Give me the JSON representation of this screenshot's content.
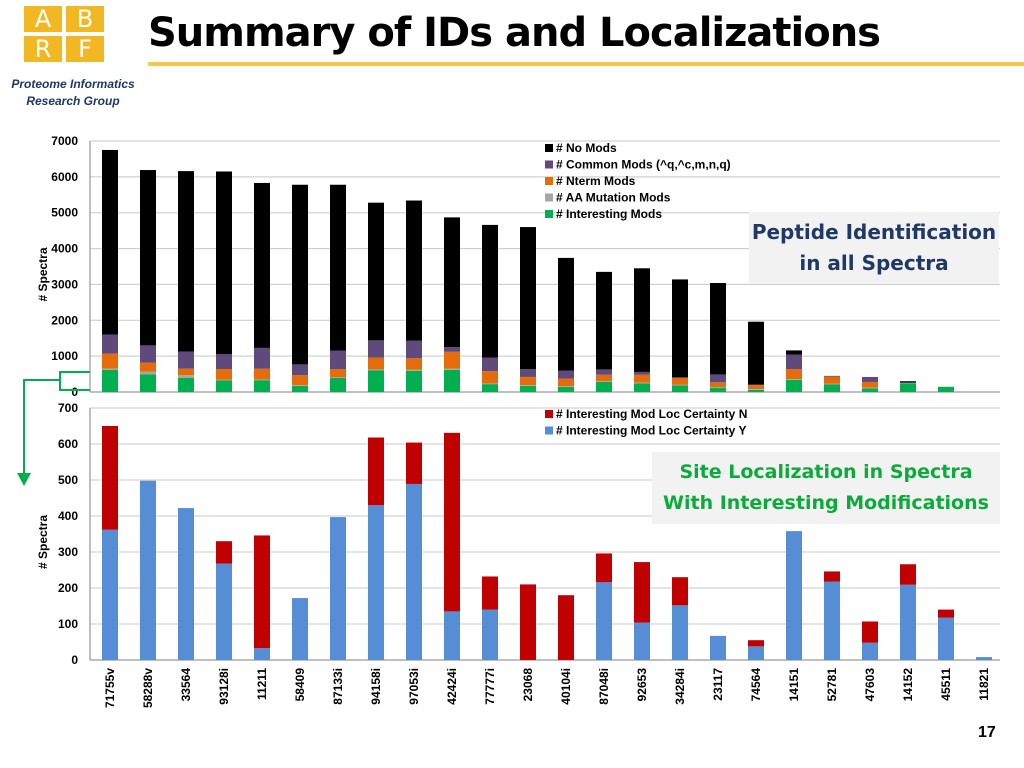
{
  "header": {
    "logo_letters": [
      "A",
      "B",
      "R",
      "F"
    ],
    "org_line1": "Proteome Informatics",
    "org_line2": "Research Group",
    "title": "Summary of IDs and Localizations"
  },
  "callouts": {
    "top": [
      "Peptide Identification",
      "in all Spectra"
    ],
    "bottom": [
      "Site Localization in Spectra",
      "With Interesting Modifications"
    ]
  },
  "page_number": "17",
  "colors": {
    "black": "#000000",
    "purple": "#604a7b",
    "orange": "#e46c0a",
    "gray": "#a6a6a6",
    "green": "#00b050",
    "red": "#c00000",
    "blue": "#558ed5",
    "accent": "#f2c94c"
  },
  "chart_data": [
    {
      "type": "bar",
      "stacked": true,
      "ylabel": "#  Spectra",
      "ylim": [
        0,
        7000
      ],
      "yticks": [
        "0",
        "1000",
        "2000",
        "3000",
        "4000",
        "5000",
        "6000",
        "7000"
      ],
      "categories": [
        "71755v",
        "58288v",
        "33564",
        "93128i",
        "11211",
        "58409",
        "87133i",
        "94158i",
        "97053i",
        "42424i",
        "77777i",
        "23068",
        "40104i",
        "87048i",
        "92653",
        "34284i",
        "23117",
        "74564",
        "14151",
        "52781",
        "47603",
        "14152",
        "45511",
        "11821"
      ],
      "series": [
        {
          "name": "# Interesting Mods",
          "color": "#00b050",
          "values": [
            620,
            490,
            390,
            320,
            330,
            170,
            390,
            600,
            590,
            620,
            220,
            170,
            140,
            280,
            240,
            180,
            120,
            60,
            340,
            210,
            100,
            240,
            140,
            0
          ]
        },
        {
          "name": "# AA Mutation Mods",
          "color": "#a6a6a6",
          "values": [
            30,
            80,
            80,
            20,
            20,
            20,
            20,
            30,
            30,
            30,
            20,
            20,
            20,
            20,
            20,
            20,
            20,
            20,
            20,
            20,
            20,
            20,
            10,
            0
          ]
        },
        {
          "name": "# Nterm Mods",
          "color": "#e46c0a",
          "values": [
            420,
            250,
            180,
            300,
            300,
            280,
            230,
            330,
            320,
            470,
            340,
            230,
            210,
            180,
            220,
            190,
            130,
            110,
            280,
            200,
            160,
            0,
            0,
            0
          ]
        },
        {
          "name": "# Common Mods (^q,^c,m,n,q)",
          "color": "#604a7b",
          "values": [
            530,
            480,
            480,
            420,
            580,
            300,
            510,
            480,
            490,
            130,
            380,
            220,
            230,
            150,
            80,
            20,
            220,
            20,
            400,
            20,
            140,
            0,
            0,
            0
          ]
        },
        {
          "name": "# No Mods",
          "color": "#000000",
          "values": [
            5150,
            4890,
            5030,
            5090,
            4600,
            5010,
            4630,
            3840,
            3910,
            3620,
            3700,
            3960,
            3140,
            2720,
            2890,
            2730,
            2550,
            1750,
            120,
            0,
            0,
            40,
            0,
            0
          ]
        }
      ],
      "legend": "top-right"
    },
    {
      "type": "bar",
      "stacked": true,
      "ylabel": "#  Spectra",
      "ylim": [
        0,
        700
      ],
      "yticks": [
        "0",
        "100",
        "200",
        "300",
        "400",
        "500",
        "600",
        "700"
      ],
      "categories": [
        "71755v",
        "58288v",
        "33564",
        "93128i",
        "11211",
        "58409",
        "87133i",
        "94158i",
        "97053i",
        "42424i",
        "77777i",
        "23068",
        "40104i",
        "87048i",
        "92653",
        "34284i",
        "23117",
        "74564",
        "14151",
        "52781",
        "47603",
        "14152",
        "45511",
        "11821"
      ],
      "series": [
        {
          "name": "# Interesting Mod Loc Certainty Y",
          "color": "#558ed5",
          "values": [
            362,
            498,
            422,
            268,
            33,
            172,
            397,
            430,
            489,
            135,
            140,
            0,
            0,
            216,
            104,
            152,
            67,
            38,
            358,
            218,
            48,
            209,
            118,
            8
          ]
        },
        {
          "name": "# Interesting Mod Loc Certainty N",
          "color": "#c00000",
          "values": [
            288,
            0,
            0,
            62,
            313,
            0,
            0,
            188,
            115,
            496,
            92,
            210,
            180,
            80,
            168,
            78,
            0,
            17,
            0,
            28,
            59,
            57,
            22,
            0
          ]
        }
      ],
      "legend": "top-right"
    }
  ]
}
